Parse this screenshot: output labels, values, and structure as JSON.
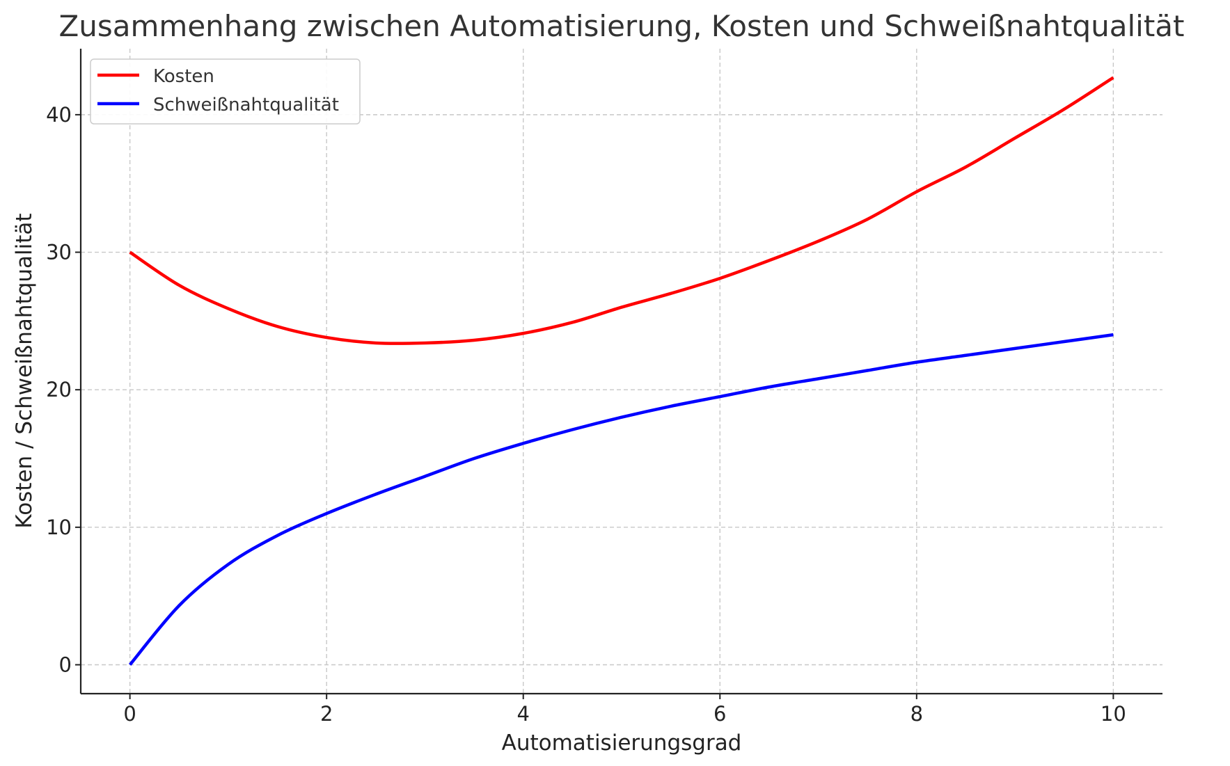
{
  "chart_data": {
    "type": "line",
    "title": "Zusammenhang zwischen Automatisierung, Kosten und Schweißnahtqualität",
    "xlabel": "Automatisierungsgrad",
    "ylabel": "Kosten / Schweißnahtqualität",
    "xlim": [
      -0.5,
      10.5
    ],
    "ylim": [
      -2.1,
      44.8
    ],
    "xticks": [
      0,
      2,
      4,
      6,
      8,
      10
    ],
    "yticks": [
      0,
      10,
      20,
      30,
      40
    ],
    "grid": true,
    "legend_position": "top-left",
    "x": [
      0,
      0.5,
      1,
      1.5,
      2,
      2.5,
      3,
      3.5,
      4,
      4.5,
      5,
      5.5,
      6,
      6.5,
      7,
      7.5,
      8,
      8.5,
      9,
      9.5,
      10
    ],
    "series": [
      {
        "name": "Kosten",
        "color": "#ff0000",
        "values": [
          30.0,
          27.6,
          25.9,
          24.6,
          23.8,
          23.4,
          23.4,
          23.6,
          24.1,
          24.9,
          26.0,
          27.0,
          28.1,
          29.4,
          30.8,
          32.4,
          34.4,
          36.2,
          38.3,
          40.4,
          42.7
        ]
      },
      {
        "name": "Schweißnahtqualität",
        "color": "#0000ff",
        "values": [
          0.0,
          4.3,
          7.3,
          9.4,
          11.0,
          12.4,
          13.7,
          15.0,
          16.1,
          17.1,
          18.0,
          18.8,
          19.5,
          20.2,
          20.8,
          21.4,
          22.0,
          22.5,
          23.0,
          23.5,
          24.0
        ]
      }
    ]
  }
}
